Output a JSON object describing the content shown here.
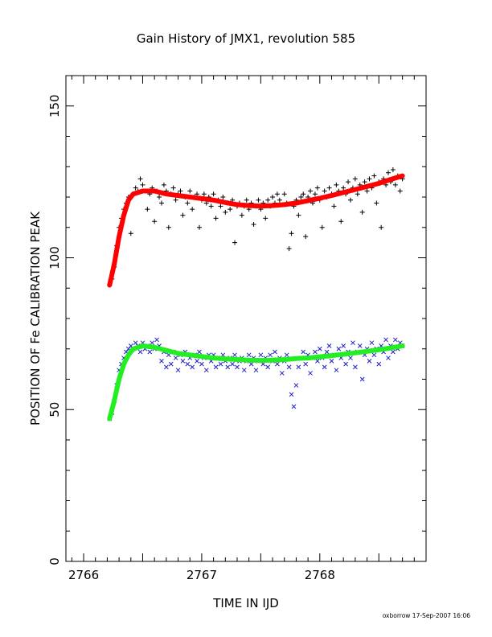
{
  "chart_data": {
    "type": "scatter",
    "title": "Gain History of JMX1, revolution 585",
    "xlabel": "TIME IN IJD",
    "ylabel": "POSITION OF Fe CALIBRATION PEAK",
    "xlim": [
      2765.85,
      2768.9
    ],
    "ylim": [
      0,
      160
    ],
    "x_ticks": [
      2766,
      2767,
      2768
    ],
    "x_tick_labels": [
      "2766",
      "2767",
      "2768"
    ],
    "y_ticks": [
      0,
      50,
      100,
      150
    ],
    "y_tick_labels": [
      "0",
      "50",
      "100",
      "150"
    ],
    "grid": false,
    "footer": "oxborrow 17-Sep-2007 16:06",
    "series": [
      {
        "marker": "plus",
        "color": "#000000",
        "points": [
          [
            2766.22,
            91
          ],
          [
            2766.24,
            93
          ],
          [
            2766.26,
            97
          ],
          [
            2766.28,
            104
          ],
          [
            2766.3,
            110
          ],
          [
            2766.32,
            113
          ],
          [
            2766.34,
            116
          ],
          [
            2766.36,
            118
          ],
          [
            2766.38,
            120
          ],
          [
            2766.4,
            108
          ],
          [
            2766.42,
            121
          ],
          [
            2766.44,
            123
          ],
          [
            2766.46,
            122
          ],
          [
            2766.48,
            126
          ],
          [
            2766.5,
            124
          ],
          [
            2766.52,
            122
          ],
          [
            2766.54,
            116
          ],
          [
            2766.56,
            121
          ],
          [
            2766.58,
            123
          ],
          [
            2766.6,
            112
          ],
          [
            2766.62,
            122
          ],
          [
            2766.64,
            120
          ],
          [
            2766.66,
            118
          ],
          [
            2766.68,
            124
          ],
          [
            2766.7,
            122
          ],
          [
            2766.72,
            110
          ],
          [
            2766.74,
            121
          ],
          [
            2766.76,
            123
          ],
          [
            2766.78,
            119
          ],
          [
            2766.8,
            121
          ],
          [
            2766.82,
            122
          ],
          [
            2766.84,
            114
          ],
          [
            2766.86,
            120
          ],
          [
            2766.88,
            118
          ],
          [
            2766.9,
            122
          ],
          [
            2766.92,
            116
          ],
          [
            2766.94,
            120
          ],
          [
            2766.96,
            121
          ],
          [
            2766.98,
            110
          ],
          [
            2767.0,
            119
          ],
          [
            2767.02,
            121
          ],
          [
            2767.04,
            118
          ],
          [
            2767.06,
            120
          ],
          [
            2767.08,
            117
          ],
          [
            2767.1,
            121
          ],
          [
            2767.12,
            113
          ],
          [
            2767.14,
            119
          ],
          [
            2767.16,
            117
          ],
          [
            2767.18,
            120
          ],
          [
            2767.2,
            115
          ],
          [
            2767.22,
            118
          ],
          [
            2767.24,
            116
          ],
          [
            2767.26,
            119
          ],
          [
            2767.28,
            105
          ],
          [
            2767.3,
            117
          ],
          [
            2767.32,
            118
          ],
          [
            2767.34,
            114
          ],
          [
            2767.36,
            117
          ],
          [
            2767.38,
            119
          ],
          [
            2767.4,
            116
          ],
          [
            2767.42,
            118
          ],
          [
            2767.44,
            111
          ],
          [
            2767.46,
            117
          ],
          [
            2767.48,
            119
          ],
          [
            2767.5,
            116
          ],
          [
            2767.52,
            118
          ],
          [
            2767.54,
            113
          ],
          [
            2767.56,
            119
          ],
          [
            2767.58,
            117
          ],
          [
            2767.6,
            120
          ],
          [
            2767.62,
            118
          ],
          [
            2767.64,
            121
          ],
          [
            2767.66,
            119
          ],
          [
            2767.7,
            121
          ],
          [
            2767.72,
            118
          ],
          [
            2767.74,
            103
          ],
          [
            2767.76,
            108
          ],
          [
            2767.78,
            117
          ],
          [
            2767.8,
            119
          ],
          [
            2767.82,
            114
          ],
          [
            2767.84,
            120
          ],
          [
            2767.86,
            121
          ],
          [
            2767.88,
            107
          ],
          [
            2767.9,
            120
          ],
          [
            2767.92,
            122
          ],
          [
            2767.94,
            118
          ],
          [
            2767.96,
            121
          ],
          [
            2767.98,
            123
          ],
          [
            2768.0,
            119
          ],
          [
            2768.02,
            110
          ],
          [
            2768.04,
            122
          ],
          [
            2768.06,
            120
          ],
          [
            2768.08,
            123
          ],
          [
            2768.1,
            121
          ],
          [
            2768.12,
            117
          ],
          [
            2768.14,
            124
          ],
          [
            2768.16,
            122
          ],
          [
            2768.18,
            112
          ],
          [
            2768.2,
            123
          ],
          [
            2768.22,
            121
          ],
          [
            2768.24,
            125
          ],
          [
            2768.26,
            119
          ],
          [
            2768.28,
            123
          ],
          [
            2768.3,
            126
          ],
          [
            2768.32,
            121
          ],
          [
            2768.34,
            124
          ],
          [
            2768.36,
            115
          ],
          [
            2768.38,
            125
          ],
          [
            2768.4,
            122
          ],
          [
            2768.42,
            126
          ],
          [
            2768.44,
            123
          ],
          [
            2768.46,
            127
          ],
          [
            2768.48,
            118
          ],
          [
            2768.5,
            125
          ],
          [
            2768.52,
            110
          ],
          [
            2768.54,
            126
          ],
          [
            2768.56,
            124
          ],
          [
            2768.58,
            128
          ],
          [
            2768.6,
            125
          ],
          [
            2768.62,
            129
          ],
          [
            2768.64,
            124
          ],
          [
            2768.66,
            127
          ],
          [
            2768.68,
            122
          ],
          [
            2768.7,
            126
          ]
        ]
      },
      {
        "marker": "cross",
        "color": "#2020c8",
        "points": [
          [
            2766.22,
            47
          ],
          [
            2766.24,
            49
          ],
          [
            2766.26,
            53
          ],
          [
            2766.28,
            58
          ],
          [
            2766.3,
            63
          ],
          [
            2766.32,
            65
          ],
          [
            2766.34,
            67
          ],
          [
            2766.36,
            69
          ],
          [
            2766.38,
            70
          ],
          [
            2766.4,
            71
          ],
          [
            2766.42,
            70
          ],
          [
            2766.44,
            72
          ],
          [
            2766.46,
            71
          ],
          [
            2766.48,
            69
          ],
          [
            2766.5,
            72
          ],
          [
            2766.52,
            70
          ],
          [
            2766.54,
            71
          ],
          [
            2766.56,
            69
          ],
          [
            2766.58,
            72
          ],
          [
            2766.6,
            70
          ],
          [
            2766.62,
            73
          ],
          [
            2766.64,
            71
          ],
          [
            2766.66,
            66
          ],
          [
            2766.68,
            69
          ],
          [
            2766.7,
            64
          ],
          [
            2766.72,
            68
          ],
          [
            2766.74,
            65
          ],
          [
            2766.76,
            69
          ],
          [
            2766.78,
            67
          ],
          [
            2766.8,
            63
          ],
          [
            2766.82,
            68
          ],
          [
            2766.84,
            66
          ],
          [
            2766.86,
            69
          ],
          [
            2766.88,
            65
          ],
          [
            2766.9,
            67
          ],
          [
            2766.92,
            64
          ],
          [
            2766.94,
            68
          ],
          [
            2766.96,
            66
          ],
          [
            2766.98,
            69
          ],
          [
            2767.0,
            65
          ],
          [
            2767.02,
            67
          ],
          [
            2767.04,
            63
          ],
          [
            2767.06,
            68
          ],
          [
            2767.08,
            66
          ],
          [
            2767.1,
            68
          ],
          [
            2767.12,
            64
          ],
          [
            2767.14,
            67
          ],
          [
            2767.16,
            65
          ],
          [
            2767.18,
            68
          ],
          [
            2767.2,
            66
          ],
          [
            2767.22,
            64
          ],
          [
            2767.24,
            67
          ],
          [
            2767.26,
            65
          ],
          [
            2767.28,
            68
          ],
          [
            2767.3,
            64
          ],
          [
            2767.32,
            66
          ],
          [
            2767.34,
            67
          ],
          [
            2767.36,
            63
          ],
          [
            2767.38,
            66
          ],
          [
            2767.4,
            68
          ],
          [
            2767.42,
            65
          ],
          [
            2767.44,
            67
          ],
          [
            2767.46,
            63
          ],
          [
            2767.48,
            66
          ],
          [
            2767.5,
            68
          ],
          [
            2767.52,
            65
          ],
          [
            2767.54,
            67
          ],
          [
            2767.56,
            64
          ],
          [
            2767.58,
            68
          ],
          [
            2767.6,
            66
          ],
          [
            2767.62,
            69
          ],
          [
            2767.64,
            65
          ],
          [
            2767.66,
            67
          ],
          [
            2767.68,
            62
          ],
          [
            2767.7,
            66
          ],
          [
            2767.72,
            68
          ],
          [
            2767.74,
            64
          ],
          [
            2767.76,
            55
          ],
          [
            2767.78,
            51
          ],
          [
            2767.8,
            58
          ],
          [
            2767.82,
            64
          ],
          [
            2767.84,
            67
          ],
          [
            2767.86,
            69
          ],
          [
            2767.88,
            65
          ],
          [
            2767.9,
            68
          ],
          [
            2767.92,
            62
          ],
          [
            2767.94,
            67
          ],
          [
            2767.96,
            69
          ],
          [
            2767.98,
            66
          ],
          [
            2768.0,
            70
          ],
          [
            2768.02,
            67
          ],
          [
            2768.04,
            64
          ],
          [
            2768.06,
            69
          ],
          [
            2768.08,
            71
          ],
          [
            2768.1,
            66
          ],
          [
            2768.12,
            68
          ],
          [
            2768.14,
            63
          ],
          [
            2768.16,
            70
          ],
          [
            2768.18,
            67
          ],
          [
            2768.2,
            71
          ],
          [
            2768.22,
            65
          ],
          [
            2768.24,
            69
          ],
          [
            2768.26,
            67
          ],
          [
            2768.28,
            72
          ],
          [
            2768.3,
            64
          ],
          [
            2768.32,
            69
          ],
          [
            2768.34,
            71
          ],
          [
            2768.36,
            60
          ],
          [
            2768.38,
            68
          ],
          [
            2768.4,
            70
          ],
          [
            2768.42,
            66
          ],
          [
            2768.44,
            72
          ],
          [
            2768.46,
            68
          ],
          [
            2768.48,
            70
          ],
          [
            2768.5,
            65
          ],
          [
            2768.52,
            71
          ],
          [
            2768.54,
            69
          ],
          [
            2768.56,
            73
          ],
          [
            2768.58,
            67
          ],
          [
            2768.6,
            71
          ],
          [
            2768.62,
            69
          ],
          [
            2768.64,
            73
          ],
          [
            2768.66,
            70
          ],
          [
            2768.68,
            72
          ],
          [
            2768.7,
            71
          ]
        ]
      },
      {
        "marker": "curve",
        "color": "#ff0000",
        "points": [
          [
            2766.22,
            91
          ],
          [
            2766.26,
            98
          ],
          [
            2766.3,
            107
          ],
          [
            2766.34,
            114
          ],
          [
            2766.38,
            119
          ],
          [
            2766.42,
            121
          ],
          [
            2766.5,
            122
          ],
          [
            2766.6,
            122
          ],
          [
            2766.7,
            121
          ],
          [
            2766.8,
            120.5
          ],
          [
            2766.9,
            120
          ],
          [
            2767.0,
            119.5
          ],
          [
            2767.1,
            119
          ],
          [
            2767.2,
            118.2
          ],
          [
            2767.3,
            117.5
          ],
          [
            2767.4,
            117.2
          ],
          [
            2767.5,
            117
          ],
          [
            2767.6,
            117.2
          ],
          [
            2767.7,
            117.5
          ],
          [
            2767.8,
            118
          ],
          [
            2767.9,
            118.8
          ],
          [
            2768.0,
            119.6
          ],
          [
            2768.1,
            120.5
          ],
          [
            2768.2,
            121.5
          ],
          [
            2768.3,
            122.5
          ],
          [
            2768.4,
            123.5
          ],
          [
            2768.5,
            124.5
          ],
          [
            2768.6,
            125.8
          ],
          [
            2768.7,
            127
          ]
        ]
      },
      {
        "marker": "curve",
        "color": "#22ee22",
        "points": [
          [
            2766.22,
            47
          ],
          [
            2766.26,
            53
          ],
          [
            2766.3,
            60
          ],
          [
            2766.34,
            65
          ],
          [
            2766.38,
            68
          ],
          [
            2766.42,
            70
          ],
          [
            2766.5,
            71
          ],
          [
            2766.6,
            70.5
          ],
          [
            2766.7,
            69.5
          ],
          [
            2766.8,
            68.5
          ],
          [
            2766.9,
            68
          ],
          [
            2767.0,
            67.5
          ],
          [
            2767.1,
            67
          ],
          [
            2767.2,
            66.7
          ],
          [
            2767.3,
            66.5
          ],
          [
            2767.4,
            66.3
          ],
          [
            2767.5,
            66.2
          ],
          [
            2767.6,
            66.3
          ],
          [
            2767.7,
            66.5
          ],
          [
            2767.8,
            66.8
          ],
          [
            2767.9,
            67
          ],
          [
            2768.0,
            67.4
          ],
          [
            2768.1,
            67.8
          ],
          [
            2768.2,
            68.2
          ],
          [
            2768.3,
            68.7
          ],
          [
            2768.4,
            69.2
          ],
          [
            2768.5,
            69.7
          ],
          [
            2768.6,
            70.3
          ],
          [
            2768.7,
            71
          ]
        ]
      }
    ]
  }
}
